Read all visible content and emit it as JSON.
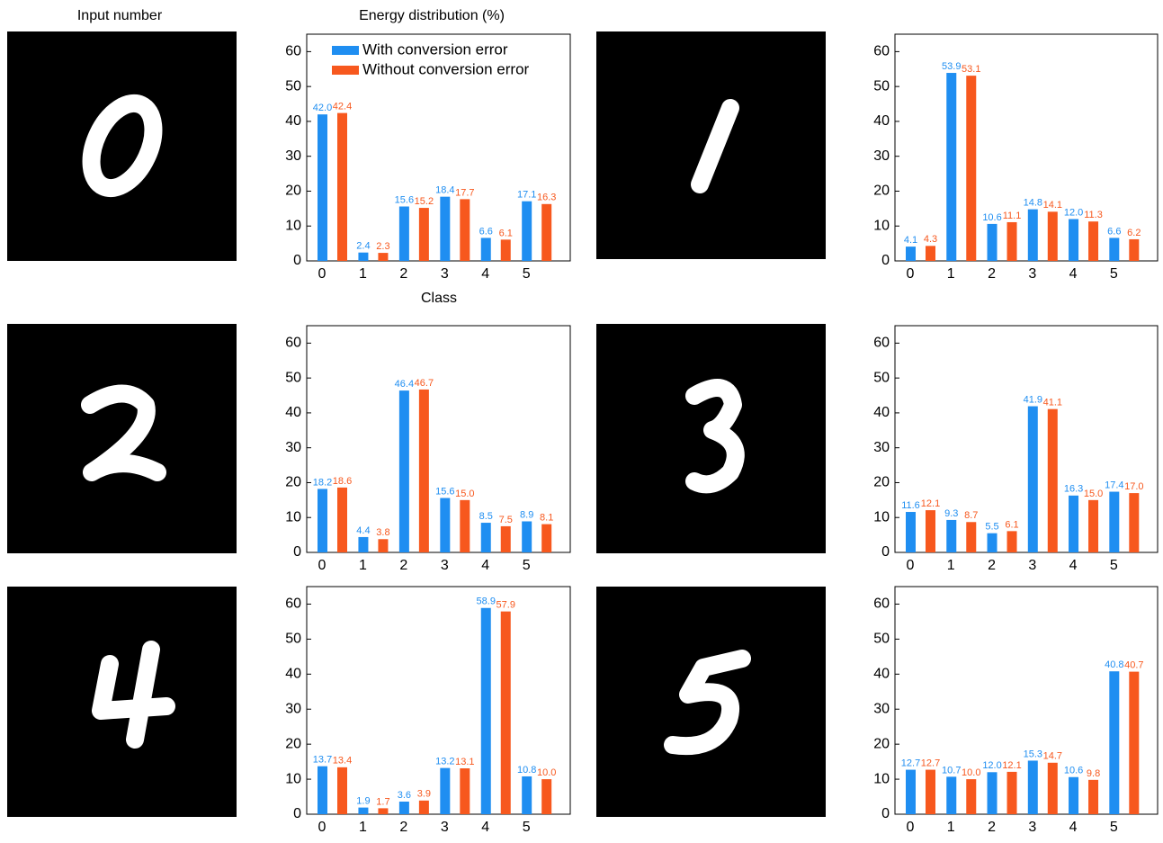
{
  "input_label": "Input number",
  "chart_data": [
    {
      "type": "bar",
      "title": "Energy distribution (%)",
      "xlabel": "Class",
      "categories": [
        "0",
        "1",
        "2",
        "3",
        "4",
        "5"
      ],
      "ylim": [
        0,
        65
      ],
      "yticks": [
        0,
        10,
        20,
        30,
        40,
        50,
        60
      ],
      "legend": "upper left",
      "series": [
        {
          "name": "With conversion error",
          "color": "#1f8ef1",
          "values": [
            42.0,
            2.4,
            15.6,
            18.4,
            6.6,
            17.1
          ],
          "value_labels": [
            "42.0",
            "2.4",
            "15.6",
            "18.4",
            "6.6",
            "17.1"
          ]
        },
        {
          "name": "Without conversion error",
          "color": "#f7581e",
          "values": [
            42.4,
            2.3,
            15.2,
            17.7,
            6.1,
            16.3
          ],
          "value_labels": [
            "42.4",
            "2.3",
            "15.2",
            "17.7",
            "6.1",
            "16.3"
          ]
        }
      ]
    },
    {
      "type": "bar",
      "categories": [
        "0",
        "1",
        "2",
        "3",
        "4",
        "5"
      ],
      "ylim": [
        0,
        65
      ],
      "yticks": [
        0,
        10,
        20,
        30,
        40,
        50,
        60
      ],
      "series": [
        {
          "color": "#1f8ef1",
          "values": [
            4.1,
            53.9,
            10.6,
            14.8,
            12.0,
            6.6
          ],
          "value_labels": [
            "4.1",
            "53.9",
            "10.6",
            "14.8",
            "12.0",
            "6.6"
          ]
        },
        {
          "color": "#f7581e",
          "values": [
            4.3,
            53.1,
            11.1,
            14.1,
            11.3,
            6.2
          ],
          "value_labels": [
            "4.3",
            "53.1",
            "11.1",
            "14.1",
            "11.3",
            "6.2"
          ]
        }
      ]
    },
    {
      "type": "bar",
      "categories": [
        "0",
        "1",
        "2",
        "3",
        "4",
        "5"
      ],
      "ylim": [
        0,
        65
      ],
      "yticks": [
        0,
        10,
        20,
        30,
        40,
        50,
        60
      ],
      "series": [
        {
          "color": "#1f8ef1",
          "values": [
            18.2,
            4.4,
            46.4,
            15.6,
            8.5,
            8.9
          ],
          "value_labels": [
            "18.2",
            "4.4",
            "46.4",
            "15.6",
            "8.5",
            "8.9"
          ]
        },
        {
          "color": "#f7581e",
          "values": [
            18.6,
            3.8,
            46.7,
            15.0,
            7.5,
            8.1
          ],
          "value_labels": [
            "18.6",
            "3.8",
            "46.7",
            "15.0",
            "7.5",
            "8.1"
          ]
        }
      ]
    },
    {
      "type": "bar",
      "categories": [
        "0",
        "1",
        "2",
        "3",
        "4",
        "5"
      ],
      "ylim": [
        0,
        65
      ],
      "yticks": [
        0,
        10,
        20,
        30,
        40,
        50,
        60
      ],
      "series": [
        {
          "color": "#1f8ef1",
          "values": [
            11.6,
            9.3,
            5.5,
            41.9,
            16.3,
            17.4
          ],
          "value_labels": [
            "11.6",
            "9.3",
            "5.5",
            "41.9",
            "16.3",
            "17.4"
          ]
        },
        {
          "color": "#f7581e",
          "values": [
            12.1,
            8.7,
            6.1,
            41.1,
            15.0,
            17.0
          ],
          "value_labels": [
            "12.1",
            "8.7",
            "6.1",
            "41.1",
            "15.0",
            "17.0"
          ]
        }
      ]
    },
    {
      "type": "bar",
      "categories": [
        "0",
        "1",
        "2",
        "3",
        "4",
        "5"
      ],
      "ylim": [
        0,
        65
      ],
      "yticks": [
        0,
        10,
        20,
        30,
        40,
        50,
        60
      ],
      "series": [
        {
          "color": "#1f8ef1",
          "values": [
            13.7,
            1.9,
            3.6,
            13.2,
            58.9,
            10.8
          ],
          "value_labels": [
            "13.7",
            "1.9",
            "3.6",
            "13.2",
            "58.9",
            "10.8"
          ]
        },
        {
          "color": "#f7581e",
          "values": [
            13.4,
            1.7,
            3.9,
            13.1,
            57.9,
            10.0
          ],
          "value_labels": [
            "13.4",
            "1.7",
            "3.9",
            "13.1",
            "57.9",
            "10.0"
          ]
        }
      ]
    },
    {
      "type": "bar",
      "categories": [
        "0",
        "1",
        "2",
        "3",
        "4",
        "5"
      ],
      "ylim": [
        0,
        65
      ],
      "yticks": [
        0,
        10,
        20,
        30,
        40,
        50,
        60
      ],
      "series": [
        {
          "color": "#1f8ef1",
          "values": [
            12.7,
            10.7,
            12.0,
            15.3,
            10.6,
            40.8
          ],
          "value_labels": [
            "12.7",
            "10.7",
            "12.0",
            "15.3",
            "10.6",
            "40.8"
          ]
        },
        {
          "color": "#f7581e",
          "values": [
            12.7,
            10.0,
            12.1,
            14.7,
            9.8,
            40.7
          ],
          "value_labels": [
            "12.7",
            "10.0",
            "12.1",
            "14.7",
            "9.8",
            "40.7"
          ]
        }
      ]
    }
  ]
}
